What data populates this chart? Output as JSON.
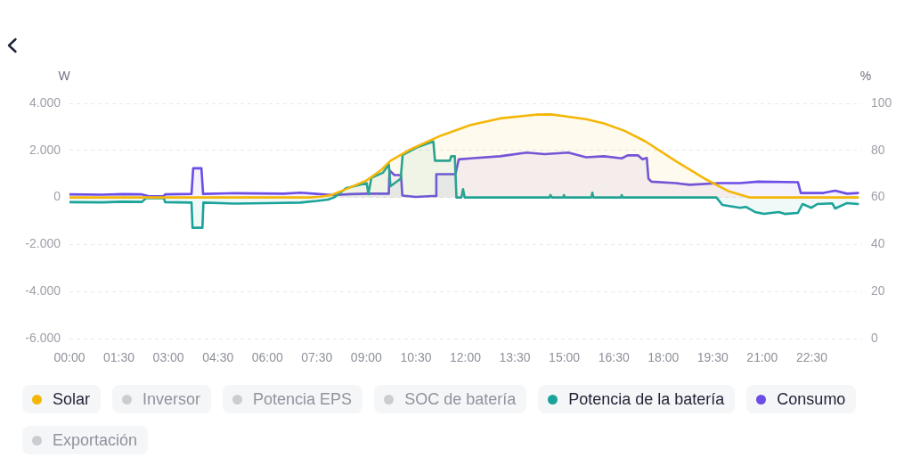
{
  "chart_data": {
    "type": "area",
    "ylabel": "W",
    "y2label": "%",
    "xlim": [
      0,
      24
    ],
    "xticks": [
      {
        "value": 0,
        "label": "00:00"
      },
      {
        "value": 1.5,
        "label": "01:30"
      },
      {
        "value": 3,
        "label": "03:00"
      },
      {
        "value": 4.5,
        "label": "04:30"
      },
      {
        "value": 6,
        "label": "06:00"
      },
      {
        "value": 7.5,
        "label": "07:30"
      },
      {
        "value": 9,
        "label": "09:00"
      },
      {
        "value": 10.5,
        "label": "10:30"
      },
      {
        "value": 12,
        "label": "12:00"
      },
      {
        "value": 13.5,
        "label": "13:30"
      },
      {
        "value": 15,
        "label": "15:00"
      },
      {
        "value": 16.5,
        "label": "16:30"
      },
      {
        "value": 18,
        "label": "18:00"
      },
      {
        "value": 19.5,
        "label": "19:30"
      },
      {
        "value": 21,
        "label": "21:00"
      },
      {
        "value": 22.5,
        "label": "22:30"
      }
    ],
    "ylim": [
      -6000,
      4000
    ],
    "yticks": [
      {
        "value": -6000,
        "label": "-6.000"
      },
      {
        "value": -4000,
        "label": "-4.000"
      },
      {
        "value": -2000,
        "label": "-2.000"
      },
      0,
      {
        "value": 2000,
        "label": "2.000"
      },
      {
        "value": 4000,
        "label": "4.000"
      }
    ],
    "y2lim": [
      0,
      100
    ],
    "y2ticks": [
      0,
      20,
      40,
      60,
      80,
      100
    ],
    "grid": "y",
    "legend": "bottom",
    "series": [
      {
        "name": "Solar",
        "color": "#f4b708",
        "x": [
          0,
          7.3,
          7.6,
          7.93,
          8.38,
          9.01,
          9.46,
          9.73,
          10.36,
          11.26,
          12.16,
          13.05,
          14.13,
          14.6,
          15.12,
          15.66,
          16.2,
          16.83,
          17.46,
          18.36,
          19.25,
          19.97,
          20.6,
          23.9
        ],
        "values": [
          0,
          0,
          30,
          100,
          350,
          730,
          1180,
          1560,
          2060,
          2630,
          3080,
          3360,
          3520,
          3530,
          3430,
          3330,
          3150,
          2830,
          2380,
          1560,
          800,
          270,
          0,
          0
        ]
      },
      {
        "name": "Inversor",
        "color": "#cbcdd2"
      },
      {
        "name": "Potencia EPS",
        "color": "#cbcdd2"
      },
      {
        "name": "SOC de batería",
        "color": "#cbcdd2"
      },
      {
        "name": "Potencia de la batería",
        "color": "#1ba39a",
        "x": [
          0,
          1.0,
          1.6,
          2.2,
          2.32,
          2.86,
          2.9,
          3.7,
          3.73,
          4.03,
          4.06,
          5.0,
          6.0,
          7.0,
          7.5,
          7.84,
          8.02,
          8.29,
          8.38,
          9.01,
          9.06,
          9.15,
          9.5,
          9.68,
          9.73,
          10.04,
          10.1,
          10.54,
          11.03,
          11.08,
          11.53,
          11.57,
          11.68,
          11.73,
          11.88,
          11.93,
          11.98,
          14.55,
          14.58,
          14.62,
          14.97,
          14.99,
          15.02,
          15.82,
          15.85,
          15.88,
          16.72,
          16.74,
          16.77,
          19.61,
          19.79,
          20.33,
          20.5,
          20.78,
          21.05,
          21.5,
          21.68,
          22.08,
          22.22,
          22.49,
          22.67,
          23.12,
          23.21,
          23.57,
          23.9
        ],
        "values": [
          -200,
          -210,
          -180,
          -190,
          -30,
          -30,
          -200,
          -220,
          -1290,
          -1290,
          -220,
          -260,
          -240,
          -220,
          -150,
          -90,
          0,
          290,
          390,
          610,
          140,
          830,
          1050,
          1410,
          480,
          800,
          1810,
          2130,
          2380,
          1560,
          1560,
          1750,
          1750,
          0,
          0,
          350,
          0,
          0,
          100,
          0,
          0,
          100,
          0,
          0,
          200,
          0,
          0,
          100,
          0,
          0,
          -320,
          -440,
          -400,
          -620,
          -700,
          -620,
          -700,
          -660,
          -280,
          -440,
          -280,
          -250,
          -470,
          -240,
          -280
        ]
      },
      {
        "name": "Consumo",
        "color": "#6c4de6",
        "x": [
          0,
          1.0,
          1.6,
          2.2,
          2.4,
          2.85,
          2.9,
          3.7,
          3.75,
          4.0,
          4.05,
          5.0,
          6.5,
          7.0,
          7.5,
          8.0,
          8.5,
          9.0,
          9.68,
          9.7,
          9.85,
          10.05,
          10.09,
          10.5,
          11.0,
          11.1,
          11.12,
          11.7,
          11.8,
          12.16,
          13.05,
          13.86,
          14.4,
          15.12,
          15.66,
          16.2,
          16.74,
          16.92,
          17.23,
          17.37,
          17.5,
          17.55,
          17.64,
          18.36,
          18.8,
          19.7,
          20.33,
          20.87,
          22.08,
          22.17,
          22.85,
          23.21,
          23.57,
          23.9
        ],
        "values": [
          130,
          120,
          140,
          130,
          50,
          50,
          130,
          150,
          1240,
          1240,
          150,
          180,
          160,
          200,
          150,
          100,
          140,
          160,
          160,
          1150,
          950,
          950,
          80,
          20,
          60,
          60,
          990,
          990,
          1620,
          1660,
          1750,
          1910,
          1840,
          1910,
          1710,
          1750,
          1660,
          1790,
          1790,
          1620,
          1680,
          800,
          670,
          610,
          540,
          610,
          610,
          670,
          650,
          190,
          190,
          290,
          160,
          190
        ]
      },
      {
        "name": "Exportación",
        "color": "#cbcdd2"
      }
    ]
  }
}
